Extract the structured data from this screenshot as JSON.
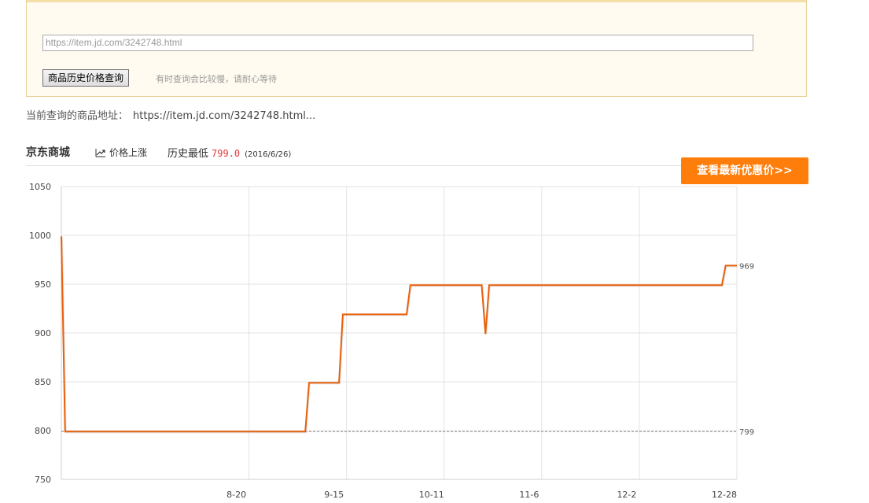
{
  "query": {
    "input_value": "https://item.jd.com/3242748.html",
    "button_label": "商品历史价格查询",
    "hint": "有时查询会比较慢，请耐心等待"
  },
  "current": {
    "label": "当前查询的商品地址：",
    "url": "https://item.jd.com/3242748.html..."
  },
  "store": {
    "name": "京东商城",
    "trend_label": "价格上涨",
    "lowest_label": "历史最低",
    "lowest_price": "799.0",
    "lowest_date": "(2016/6/26)"
  },
  "promo_button": "查看最新优惠价>>",
  "colors": {
    "line": "#e8600c",
    "promo": "#ff7d0a",
    "price": "#e4393c"
  },
  "chart_data": {
    "type": "line",
    "xlabel": "",
    "ylabel": "",
    "ylim": [
      750,
      1050
    ],
    "yticks": [
      750,
      800,
      850,
      900,
      950,
      1000,
      1050
    ],
    "xticks": [
      "8-20",
      "9-15",
      "10-11",
      "11-6",
      "12-2",
      "12-28"
    ],
    "x_domain_days": [
      -50,
      130
    ],
    "grid": true,
    "reference_line": {
      "value": 799,
      "label": "799"
    },
    "end_label": "969",
    "series": [
      {
        "points": [
          [
            -50,
            999
          ],
          [
            -49,
            799
          ],
          [
            15,
            799
          ],
          [
            16,
            849
          ],
          [
            24,
            849
          ],
          [
            25,
            919
          ],
          [
            42,
            919
          ],
          [
            43,
            949
          ],
          [
            62,
            949
          ],
          [
            63,
            899
          ],
          [
            64,
            949
          ],
          [
            126,
            949
          ],
          [
            127,
            969
          ],
          [
            130,
            969
          ]
        ]
      }
    ]
  }
}
